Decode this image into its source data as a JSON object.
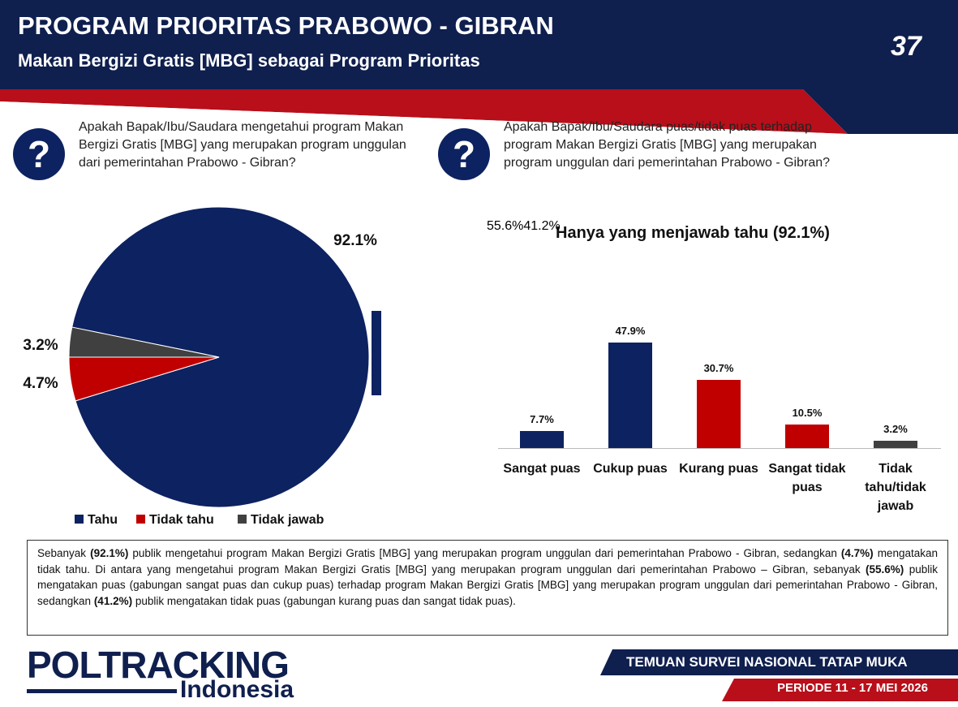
{
  "header": {
    "title": "PROGRAM PRIORITAS PRABOWO - GIBRAN",
    "subtitle": "Makan Bergizi Gratis [MBG] sebagai Program Prioritas",
    "page_number": "37"
  },
  "questions": [
    "Apakah Bapak/Ibu/Saudara mengetahui program Makan Bergizi Gratis [MBG] yang merupakan program unggulan dari pemerintahan Prabowo - Gibran?",
    "Apakah Bapak/Ibu/Saudara puas/tidak puas terhadap program Makan Bergizi Gratis [MBG] yang merupakan program unggulan dari pemerintahan Prabowo - Gibran?"
  ],
  "chart_data": [
    {
      "type": "pie",
      "categories": [
        "Tahu",
        "Tidak tahu",
        "Tidak jawab"
      ],
      "values": [
        92.1,
        4.7,
        3.2
      ],
      "value_labels": [
        "92.1%",
        "4.7%",
        "3.2%"
      ],
      "colors": [
        "#0d2260",
        "#c00000",
        "#404040"
      ],
      "legend": "bottom"
    },
    {
      "type": "bar",
      "title": "Hanya yang menjawab tahu (92.1%)",
      "categories": [
        "Sangat puas",
        "Cukup puas",
        "Kurang puas",
        "Sangat tidak puas",
        "Tidak tahu/tidak jawab"
      ],
      "values": [
        7.7,
        47.9,
        30.7,
        10.5,
        3.2
      ],
      "value_labels": [
        "7.7%",
        "47.9%",
        "30.7%",
        "10.5%",
        "3.2%"
      ],
      "colors": [
        "#0d2260",
        "#0d2260",
        "#c00000",
        "#c00000",
        "#404040"
      ],
      "annotations": [
        {
          "text": "55.6%",
          "color": "#0d2260"
        },
        {
          "text": "41.2%",
          "color": "#c00000"
        }
      ]
    }
  ],
  "summary": [
    "Sebanyak ",
    "(92.1%)",
    " publik mengetahui program Makan Bergizi Gratis [MBG] yang merupakan program unggulan dari pemerintahan Prabowo - Gibran, sedangkan ",
    "(4.7%)",
    " mengatakan tidak tahu. Di antara yang mengetahui program Makan Bergizi Gratis [MBG] yang merupakan program unggulan dari pemerintahan Prabowo – Gibran, sebanyak ",
    "(55.6%)",
    " publik mengatakan puas (gabungan sangat puas dan cukup puas) terhadap  program Makan Bergizi Gratis [MBG] yang merupakan program unggulan dari pemerintahan Prabowo - Gibran, sedangkan ",
    "(41.2%)",
    " publik mengatakan tidak puas (gabungan kurang puas dan sangat tidak puas)."
  ],
  "footer": {
    "logo": "POLTRACKING",
    "logo_sub": "Indonesia",
    "survey": "TEMUAN SURVEI NASIONAL TATAP MUKA",
    "period": "PERIODE 11 - 17 MEI 2026"
  }
}
